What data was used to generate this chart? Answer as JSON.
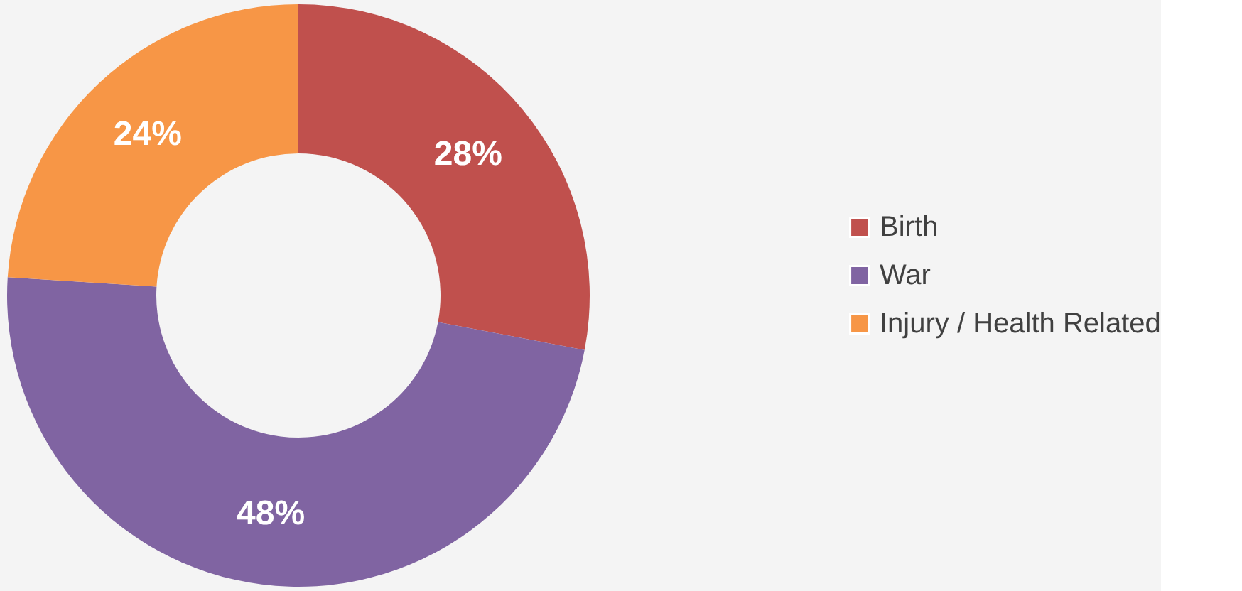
{
  "chart_data": {
    "type": "donut",
    "categories": [
      "Birth",
      "War",
      "Injury / Health Related"
    ],
    "values": [
      28,
      48,
      24
    ],
    "colors": [
      "#c0504d",
      "#8064a2",
      "#f79646"
    ],
    "value_labels": [
      "28%",
      "48%",
      "24%"
    ],
    "legend": "right"
  }
}
